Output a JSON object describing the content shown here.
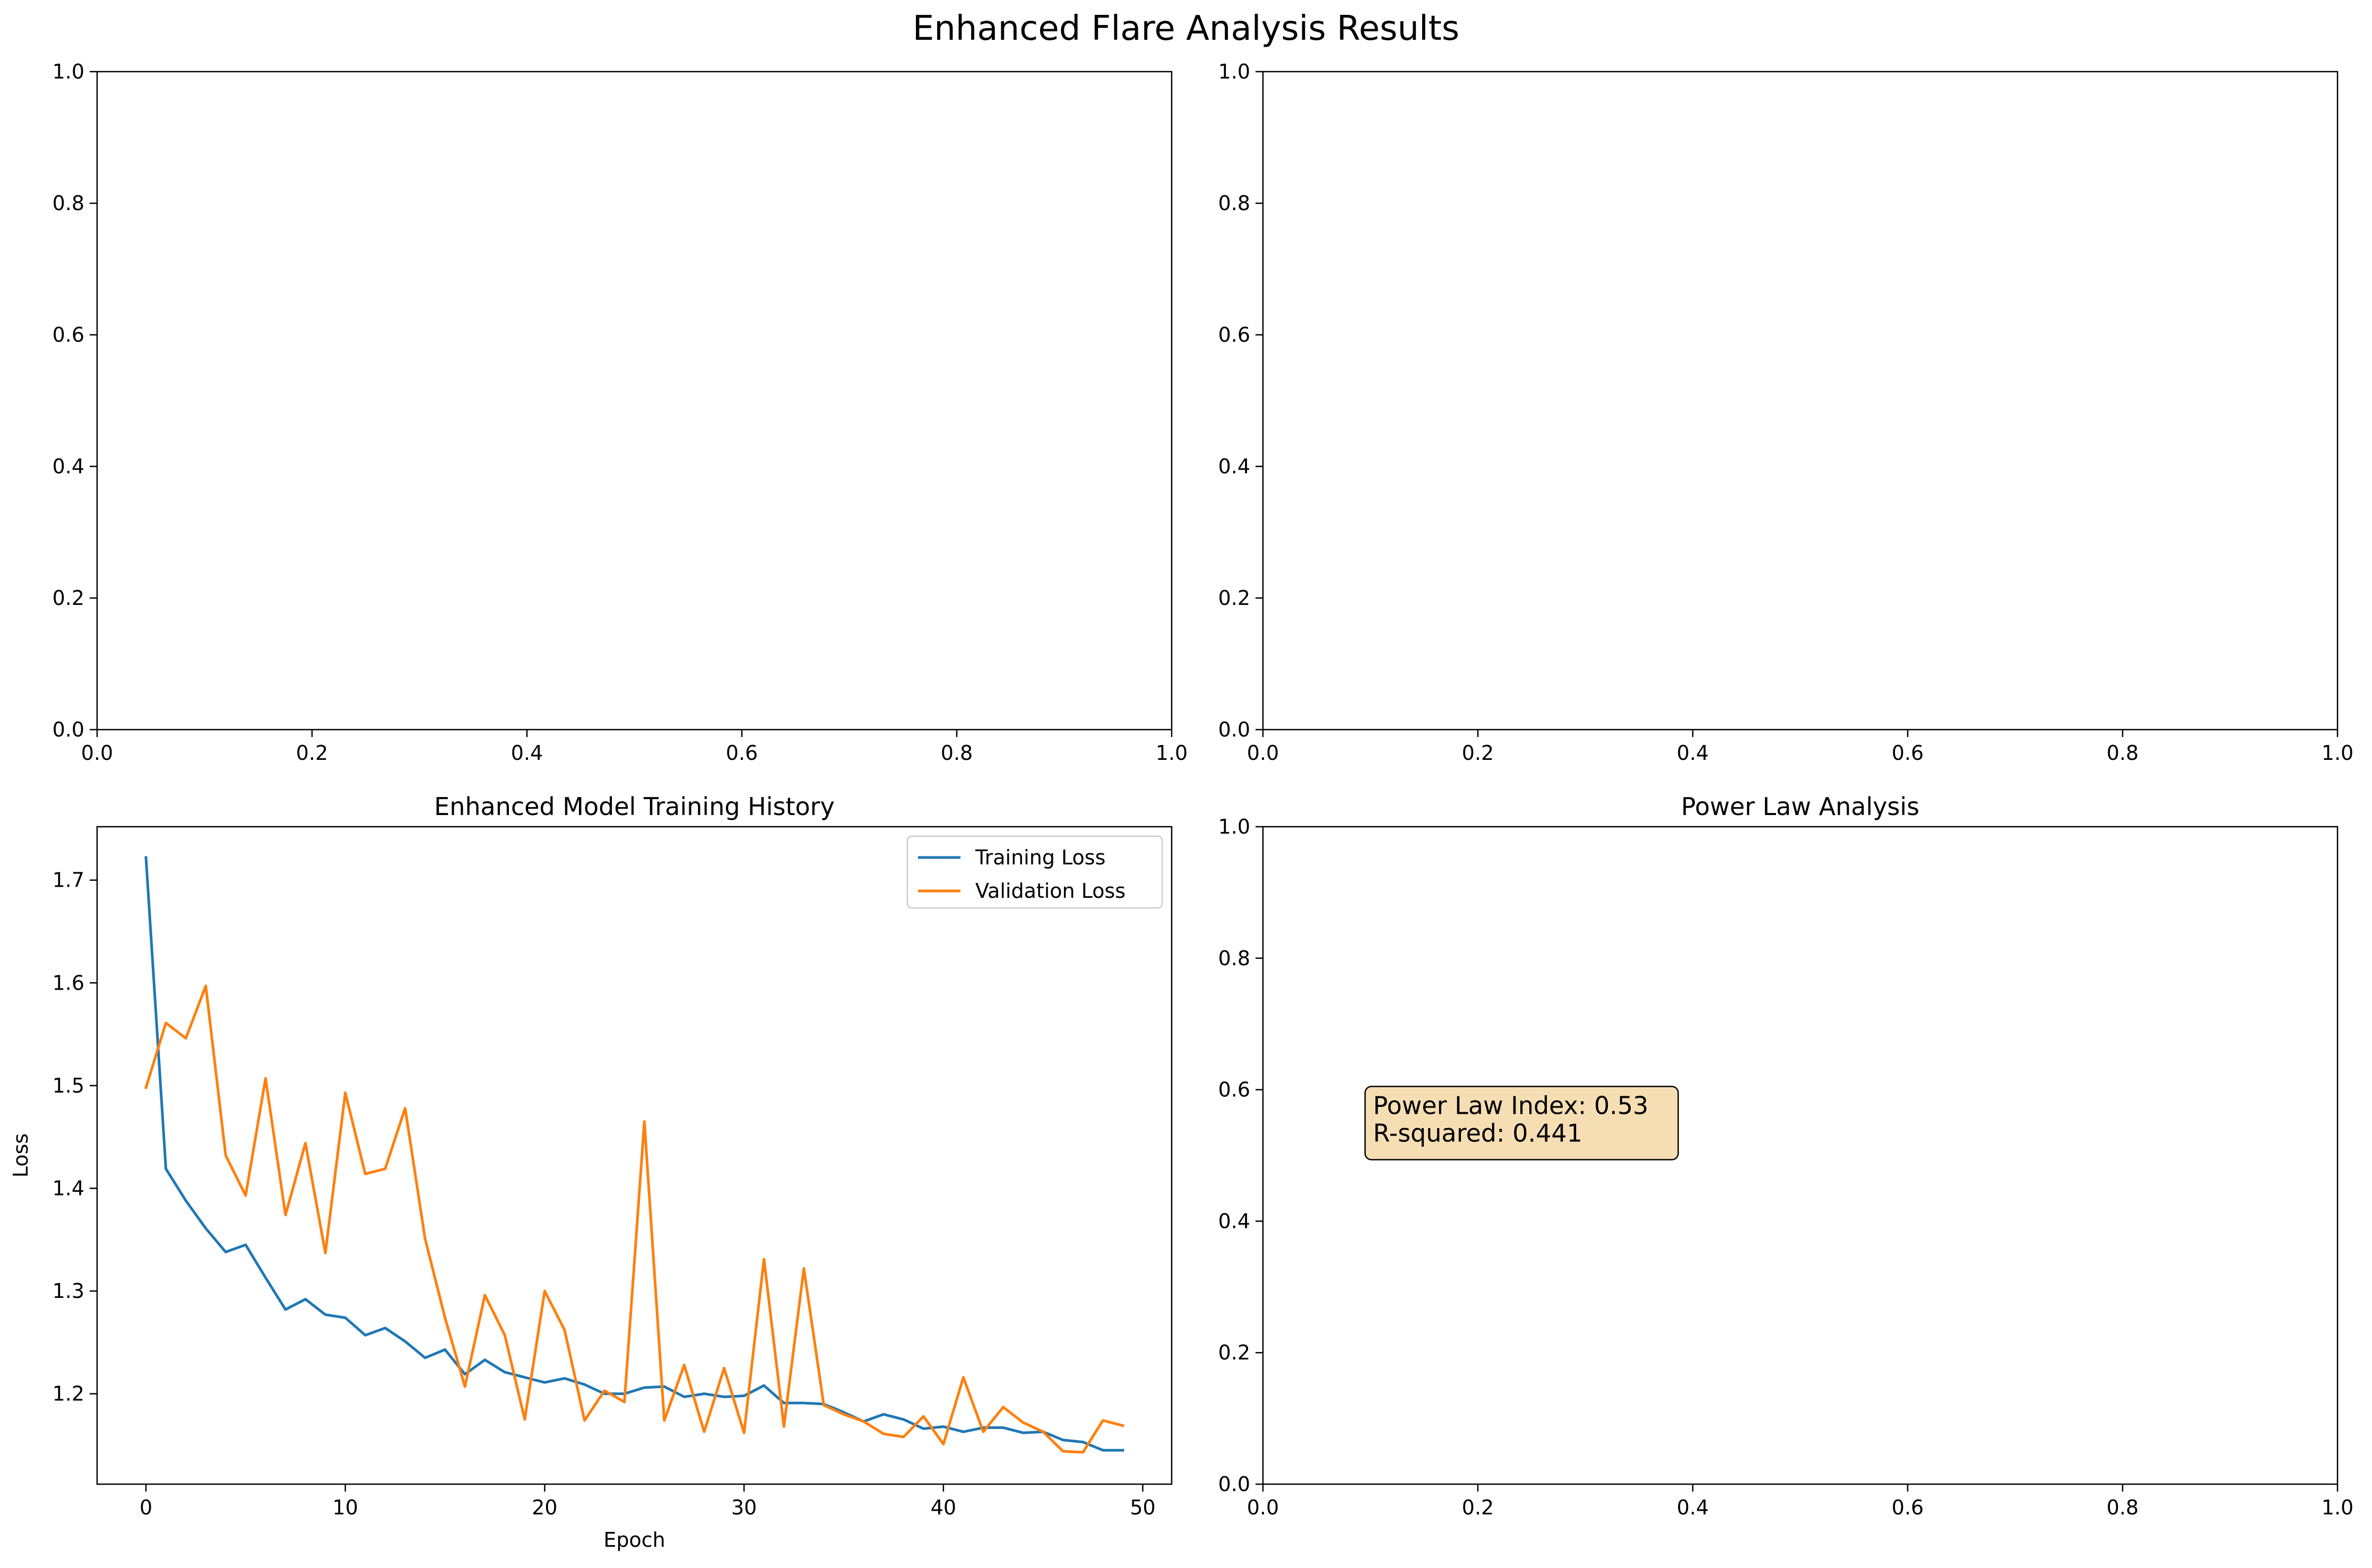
{
  "figure": {
    "suptitle": "Enhanced Flare Analysis Results"
  },
  "colors": {
    "training": "#1f77b4",
    "validation": "#ff7f0e",
    "annotation_bg": "#f5deb3"
  },
  "chart_data": [
    {
      "type": "line",
      "title": "",
      "xlabel": "",
      "ylabel": "",
      "xlim": [
        0,
        1
      ],
      "ylim": [
        0,
        1
      ],
      "xticks": [
        "0.0",
        "0.2",
        "0.4",
        "0.6",
        "0.8",
        "1.0"
      ],
      "yticks": [
        "0.0",
        "0.2",
        "0.4",
        "0.6",
        "0.8",
        "1.0"
      ],
      "series": []
    },
    {
      "type": "line",
      "title": "",
      "xlabel": "",
      "ylabel": "",
      "xlim": [
        0,
        1
      ],
      "ylim": [
        0,
        1
      ],
      "xticks": [
        "0.0",
        "0.2",
        "0.4",
        "0.6",
        "0.8",
        "1.0"
      ],
      "yticks": [
        "0.0",
        "0.2",
        "0.4",
        "0.6",
        "0.8",
        "1.0"
      ],
      "series": []
    },
    {
      "type": "line",
      "title": "Enhanced Model Training History",
      "xlabel": "Epoch",
      "ylabel": "Loss",
      "xlim": [
        -2.45,
        51.45
      ],
      "ylim": [
        1.112,
        1.752
      ],
      "xticks": [
        "0",
        "10",
        "20",
        "30",
        "40",
        "50"
      ],
      "yticks": [
        "1.2",
        "1.3",
        "1.4",
        "1.5",
        "1.6",
        "1.7"
      ],
      "legend": "top-right",
      "x": [
        0,
        1,
        2,
        3,
        4,
        5,
        6,
        7,
        8,
        9,
        10,
        11,
        12,
        13,
        14,
        15,
        16,
        17,
        18,
        19,
        20,
        21,
        22,
        23,
        24,
        25,
        26,
        27,
        28,
        29,
        30,
        31,
        32,
        33,
        34,
        35,
        36,
        37,
        38,
        39,
        40,
        41,
        42,
        43,
        44,
        45,
        46,
        47,
        48,
        49
      ],
      "series": [
        {
          "name": "Training Loss",
          "values": [
            1.722,
            1.419,
            1.388,
            1.361,
            1.338,
            1.345,
            1.313,
            1.282,
            1.292,
            1.277,
            1.274,
            1.257,
            1.264,
            1.251,
            1.235,
            1.243,
            1.219,
            1.233,
            1.221,
            1.216,
            1.211,
            1.215,
            1.209,
            1.2,
            1.2,
            1.206,
            1.207,
            1.197,
            1.2,
            1.197,
            1.198,
            1.208,
            1.191,
            1.191,
            1.19,
            1.182,
            1.173,
            1.18,
            1.175,
            1.166,
            1.168,
            1.163,
            1.167,
            1.167,
            1.162,
            1.163,
            1.155,
            1.153,
            1.145,
            1.145
          ]
        },
        {
          "name": "Validation Loss",
          "values": [
            1.498,
            1.561,
            1.546,
            1.597,
            1.432,
            1.393,
            1.507,
            1.374,
            1.444,
            1.337,
            1.493,
            1.414,
            1.419,
            1.478,
            1.351,
            1.274,
            1.207,
            1.296,
            1.257,
            1.175,
            1.3,
            1.262,
            1.174,
            1.203,
            1.192,
            1.465,
            1.174,
            1.228,
            1.163,
            1.225,
            1.162,
            1.331,
            1.168,
            1.322,
            1.189,
            1.18,
            1.173,
            1.161,
            1.158,
            1.178,
            1.151,
            1.216,
            1.163,
            1.187,
            1.172,
            1.163,
            1.144,
            1.143,
            1.174,
            1.169
          ]
        }
      ]
    },
    {
      "type": "line",
      "title": "Power Law Analysis",
      "xlabel": "",
      "ylabel": "",
      "xlim": [
        0,
        1
      ],
      "ylim": [
        0,
        1
      ],
      "xticks": [
        "0.0",
        "0.2",
        "0.4",
        "0.6",
        "0.8",
        "1.0"
      ],
      "yticks": [
        "0.0",
        "0.2",
        "0.4",
        "0.6",
        "0.8",
        "1.0"
      ],
      "series": [],
      "annotation": {
        "x": 0.1,
        "y": 0.5,
        "lines": [
          "Power Law Index: 0.53",
          "R-squared: 0.441"
        ]
      }
    }
  ]
}
